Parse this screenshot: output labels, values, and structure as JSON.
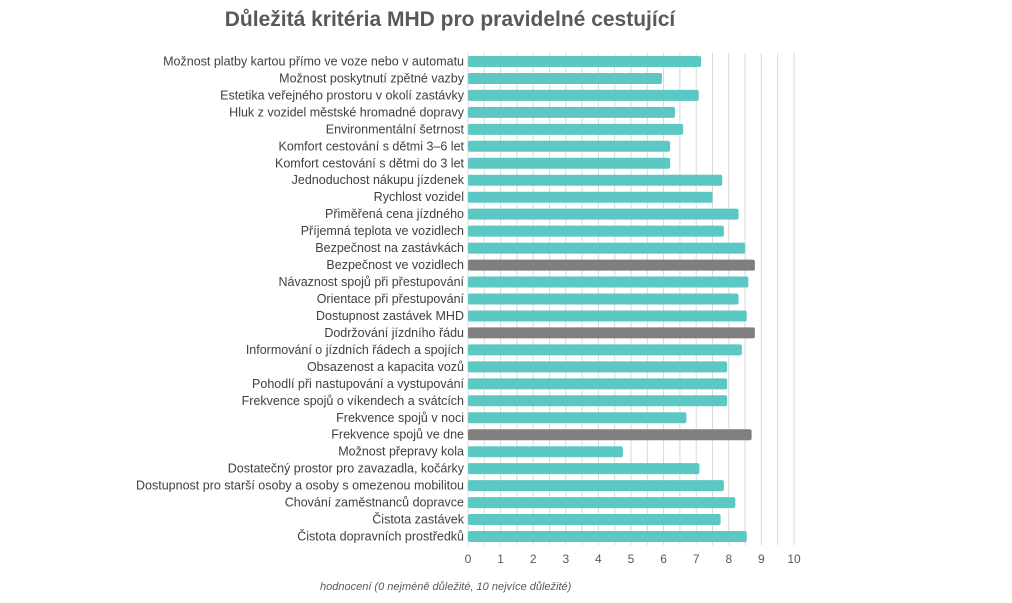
{
  "chart_data": {
    "type": "bar",
    "orientation": "horizontal",
    "title": "Důležitá kritéria MHD pro pravidelné cestující",
    "xlabel": "hodnocení (0 nejméně důležité, 10 nejvíce důležité)",
    "ylabel": "",
    "xlim": [
      0,
      10
    ],
    "xticks": [
      0,
      1,
      2,
      3,
      4,
      5,
      6,
      7,
      8,
      9,
      10
    ],
    "grid": "vertical",
    "legend": "none",
    "colors": {
      "default": "#5BC8C3",
      "highlight": "#7F7F7F",
      "grid": "#D9D9D9"
    },
    "categories": [
      "Možnost platby kartou přímo ve voze nebo v automatu",
      "Možnost poskytnutí zpětné vazby",
      "Estetika veřejného prostoru v okolí zastávky",
      "Hluk z vozidel městské hromadné dopravy",
      "Environmentální šetrnost",
      "Komfort cestování s dětmi 3–6 let",
      "Komfort cestování s dětmi do 3 let",
      "Jednoduchost nákupu jízdenek",
      "Rychlost vozidel",
      "Přiměřená cena jízdného",
      "Příjemná teplota ve vozidlech",
      "Bezpečnost na zastávkách",
      "Bezpečnost ve vozidlech",
      "Návaznost spojů při přestupování",
      "Orientace při přestupování",
      "Dostupnost zastávek MHD",
      "Dodržování jízdního řádu",
      "Informování o jízdních řádech a spojích",
      "Obsazenost a kapacita vozů",
      "Pohodlí při nastupování a vystupování",
      "Frekvence spojů o víkendech a svátcích",
      "Frekvence spojů v noci",
      "Frekvence spojů ve dne",
      "Možnost přepravy kola",
      "Dostatečný prostor pro zavazadla, kočárky",
      "Dostupnost pro starší osoby a osoby s omezenou mobilitou",
      "Chování zaměstnanců dopravce",
      "Čistota zastávek",
      "Čistota dopravních prostředků"
    ],
    "values": [
      7.15,
      5.95,
      7.08,
      6.35,
      6.6,
      6.2,
      6.2,
      7.8,
      7.5,
      8.3,
      7.85,
      8.5,
      8.8,
      8.6,
      8.3,
      8.55,
      8.8,
      8.4,
      7.95,
      7.95,
      7.95,
      6.7,
      8.7,
      4.75,
      7.1,
      7.85,
      8.2,
      7.75,
      8.55
    ],
    "highlighted": [
      "Bezpečnost ve vozidlech",
      "Dodržování jízdního řádu",
      "Frekvence spojů ve dne"
    ]
  }
}
